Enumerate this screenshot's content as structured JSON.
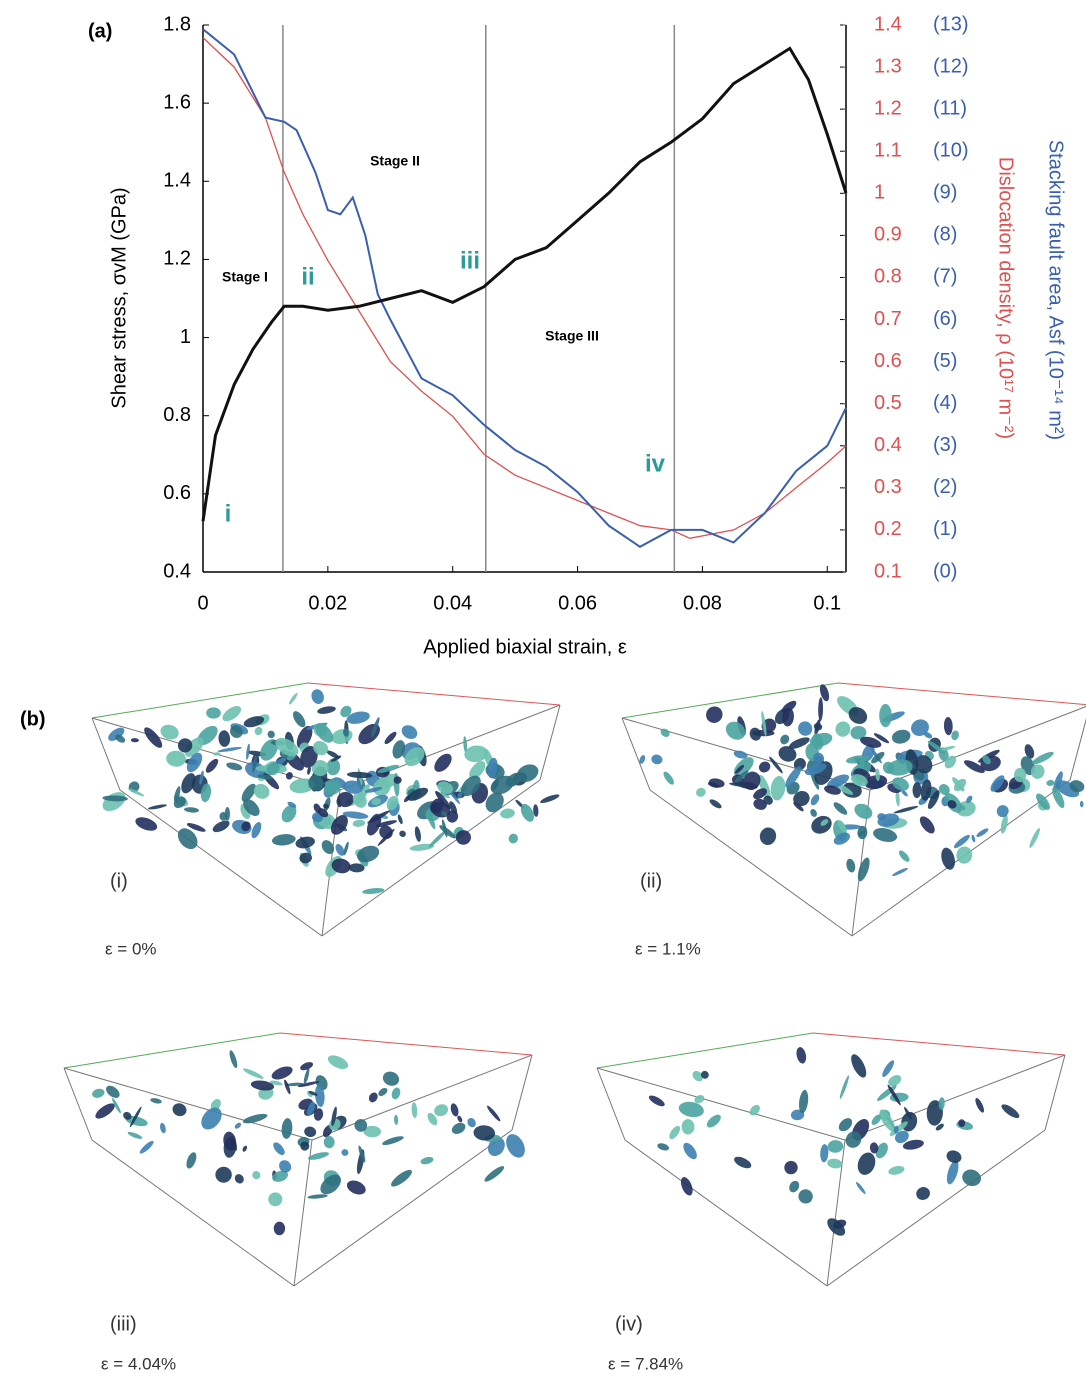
{
  "chart_data": {
    "type": "line",
    "panel_label": "(a)",
    "xlabel": "Applied biaxial strain, ε",
    "ylabel": "Shear stress, σvM (GPa)",
    "y2label": "Dislocation density, ρ (10¹⁷ m⁻²)",
    "y3label": "Stacking fault area, Asf (10⁻¹⁴ m²)",
    "xlim": [
      0,
      0.103
    ],
    "xticks": [
      0,
      0.02,
      0.04,
      0.06,
      0.08,
      0.1
    ],
    "ylim": [
      0.4,
      1.8
    ],
    "yticks": [
      0.4,
      0.6,
      0.8,
      1,
      1.2,
      1.4,
      1.6,
      1.8
    ],
    "y2lim": [
      0.1,
      1.4
    ],
    "y2ticks": [
      0.1,
      0.2,
      0.3,
      0.4,
      0.5,
      0.6,
      0.7,
      0.8,
      0.9,
      1,
      1.1,
      1.2,
      1.3,
      1.4
    ],
    "y3lim": [
      0,
      13
    ],
    "y3ticks": [
      {
        "value": 0,
        "label": "(0)"
      },
      {
        "value": 1,
        "label": "(1)"
      },
      {
        "value": 2,
        "label": "(2)"
      },
      {
        "value": 3,
        "label": "(3)"
      },
      {
        "value": 4,
        "label": "(4)"
      },
      {
        "value": 5,
        "label": "(5)"
      },
      {
        "value": 6,
        "label": "(6)"
      },
      {
        "value": 7,
        "label": "(7)"
      },
      {
        "value": 8,
        "label": "(8)"
      },
      {
        "value": 9,
        "label": "(9)"
      },
      {
        "value": 10,
        "label": "(10)"
      },
      {
        "value": 11,
        "label": "(11)"
      },
      {
        "value": 12,
        "label": "(12)"
      },
      {
        "value": 13,
        "label": "(13)"
      }
    ],
    "vlines": [
      0.0128,
      0.0453,
      0.0755
    ],
    "annotations": [
      "Stage I",
      "Stage II",
      "Stage III",
      "i",
      "ii",
      "iii",
      "iv"
    ],
    "series": [
      {
        "color": "#111111",
        "axis": "y",
        "x": [
          0,
          0.002,
          0.005,
          0.008,
          0.011,
          0.013,
          0.016,
          0.02,
          0.025,
          0.03,
          0.035,
          0.04,
          0.045,
          0.05,
          0.055,
          0.06,
          0.065,
          0.07,
          0.075,
          0.08,
          0.085,
          0.09,
          0.094,
          0.097,
          0.1,
          0.103
        ],
        "values": [
          0.53,
          0.75,
          0.88,
          0.97,
          1.04,
          1.08,
          1.08,
          1.07,
          1.08,
          1.1,
          1.12,
          1.09,
          1.13,
          1.2,
          1.23,
          1.3,
          1.37,
          1.45,
          1.5,
          1.56,
          1.65,
          1.7,
          1.74,
          1.66,
          1.52,
          1.37
        ]
      },
      {
        "color": "#e05050",
        "axis": "y2",
        "x": [
          0,
          0.005,
          0.01,
          0.013,
          0.016,
          0.02,
          0.025,
          0.03,
          0.035,
          0.04,
          0.045,
          0.05,
          0.055,
          0.06,
          0.065,
          0.07,
          0.075,
          0.078,
          0.085,
          0.09,
          0.095,
          0.1,
          0.103
        ],
        "values": [
          1.37,
          1.3,
          1.18,
          1.05,
          0.95,
          0.84,
          0.72,
          0.6,
          0.53,
          0.47,
          0.38,
          0.33,
          0.3,
          0.27,
          0.24,
          0.21,
          0.2,
          0.18,
          0.2,
          0.24,
          0.3,
          0.36,
          0.4
        ]
      },
      {
        "color": "#3a5fb0",
        "axis": "y3",
        "x": [
          0,
          0.005,
          0.01,
          0.013,
          0.015,
          0.018,
          0.02,
          0.022,
          0.024,
          0.026,
          0.028,
          0.03,
          0.035,
          0.04,
          0.045,
          0.05,
          0.055,
          0.06,
          0.065,
          0.07,
          0.075,
          0.08,
          0.085,
          0.09,
          0.095,
          0.1,
          0.103
        ],
        "values": [
          12.9,
          12.3,
          10.8,
          10.7,
          10.5,
          9.5,
          8.6,
          8.5,
          8.9,
          8.0,
          6.6,
          6.0,
          4.6,
          4.2,
          3.5,
          2.9,
          2.5,
          1.9,
          1.1,
          0.6,
          1.0,
          1.0,
          0.7,
          1.4,
          2.4,
          3.0,
          3.9
        ]
      }
    ]
  },
  "figure": {
    "panel_label": "(b)",
    "panels": [
      {
        "label": "(i)",
        "strain": "ε = 0%"
      },
      {
        "label": "(ii)",
        "strain": "ε = 1.1%"
      },
      {
        "label": "(iii)",
        "strain": "ε = 4.04%"
      },
      {
        "label": "(iv)",
        "strain": "ε = 7.84%"
      }
    ]
  }
}
